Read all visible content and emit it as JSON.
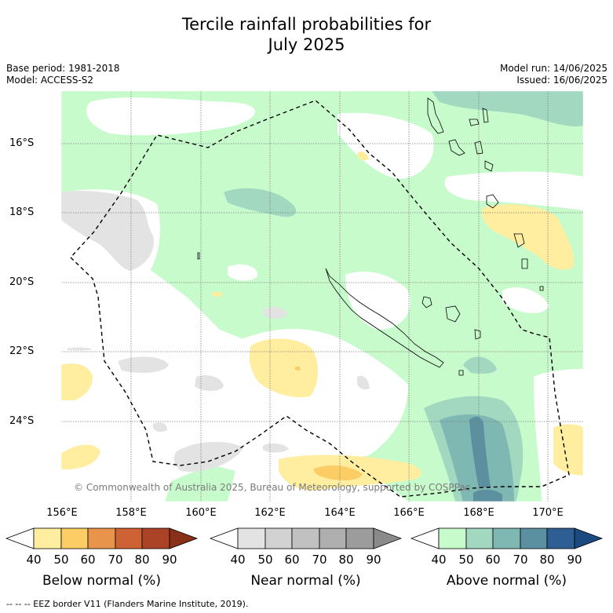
{
  "title_line1": "Tercile rainfall probabilities for",
  "title_line2": "July 2025",
  "meta_left": {
    "base_period": "Base period: 1981-2018",
    "model": "Model: ACCESS-S2"
  },
  "meta_right": {
    "model_run": "Model run: 14/06/2025",
    "issued": "Issued: 16/06/2025"
  },
  "lat_labels": [
    "16°S",
    "18°S",
    "20°S",
    "22°S",
    "24°S"
  ],
  "lon_labels": [
    "156°E",
    "158°E",
    "160°E",
    "162°E",
    "164°E",
    "166°E",
    "168°E",
    "170°E"
  ],
  "copyright": "© Commonwealth of Australia 2025, Bureau of Meteorology, supported by COSPPac",
  "colorbars": [
    {
      "title": "Below normal (%)",
      "ticks": [
        "40",
        "50",
        "60",
        "70",
        "80",
        "90"
      ],
      "colors": [
        "#ffffff",
        "#ffeda0",
        "#fdcd65",
        "#e8954b",
        "#cf6234",
        "#ab4427",
        "#8b3018"
      ]
    },
    {
      "title": "Near normal (%)",
      "ticks": [
        "40",
        "50",
        "60",
        "70",
        "80",
        "90"
      ],
      "colors": [
        "#ffffff",
        "#e3e3e3",
        "#d2d2d2",
        "#c1c1c1",
        "#afafaf",
        "#9c9c9c",
        "#8a8a8a"
      ]
    },
    {
      "title": "Above normal (%)",
      "ticks": [
        "40",
        "50",
        "60",
        "70",
        "80",
        "90"
      ],
      "colors": [
        "#ffffff",
        "#c8fbcc",
        "#a1d8bf",
        "#7fb7b3",
        "#5a90a0",
        "#2f5e94",
        "#1a4a80"
      ]
    }
  ],
  "footer": "--  --  -- EEZ border V11 (Flanders Marine Institute, 2019).",
  "colors": {
    "above_50": "#c8fbcc",
    "above_60": "#a1d8bf",
    "above_70": "#7fb7b3",
    "above_80": "#5a90a0",
    "below_50": "#ffeda0",
    "below_60": "#fdcd65",
    "near_50": "#e3e3e3"
  }
}
